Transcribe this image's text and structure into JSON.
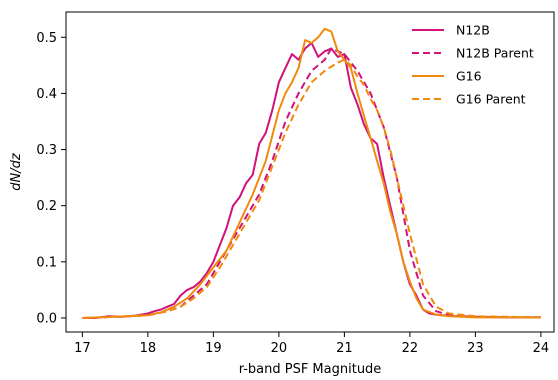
{
  "chart_data": {
    "type": "line",
    "title": "",
    "xlabel": "r-band PSF Magnitude",
    "ylabel": "dN/dz",
    "xlim": [
      16.75,
      24.2
    ],
    "ylim": [
      -0.025,
      0.545
    ],
    "xticks": [
      "17",
      "18",
      "19",
      "20",
      "21",
      "22",
      "23",
      "24"
    ],
    "yticks": [
      "0.0",
      "0.1",
      "0.2",
      "0.3",
      "0.4",
      "0.5"
    ],
    "grid": false,
    "legend_position": "top-right",
    "series": [
      {
        "name": "N12B",
        "color": "#d1127a",
        "dash": "solid",
        "x": [
          17.0,
          17.2,
          17.4,
          17.6,
          17.8,
          18.0,
          18.1,
          18.2,
          18.3,
          18.4,
          18.5,
          18.6,
          18.7,
          18.8,
          18.9,
          19.0,
          19.1,
          19.2,
          19.3,
          19.4,
          19.5,
          19.6,
          19.7,
          19.8,
          19.9,
          20.0,
          20.1,
          20.2,
          20.3,
          20.4,
          20.5,
          20.6,
          20.7,
          20.8,
          20.9,
          21.0,
          21.1,
          21.2,
          21.3,
          21.4,
          21.5,
          21.6,
          21.7,
          21.8,
          21.9,
          22.0,
          22.1,
          22.2,
          22.3,
          22.4,
          22.5,
          22.6,
          22.7,
          22.8,
          23.0,
          23.5,
          24.0
        ],
        "y": [
          0.0,
          0.0,
          0.003,
          0.002,
          0.004,
          0.008,
          0.012,
          0.015,
          0.02,
          0.025,
          0.04,
          0.05,
          0.055,
          0.065,
          0.08,
          0.1,
          0.13,
          0.16,
          0.2,
          0.215,
          0.24,
          0.255,
          0.31,
          0.33,
          0.37,
          0.42,
          0.445,
          0.47,
          0.46,
          0.48,
          0.49,
          0.465,
          0.475,
          0.48,
          0.465,
          0.47,
          0.41,
          0.38,
          0.345,
          0.32,
          0.31,
          0.25,
          0.2,
          0.15,
          0.1,
          0.06,
          0.04,
          0.015,
          0.008,
          0.006,
          0.005,
          0.004,
          0.003,
          0.003,
          0.002,
          0.001,
          0.001
        ]
      },
      {
        "name": "N12B Parent",
        "color": "#d1127a",
        "dash": "dashed",
        "x": [
          17.0,
          17.5,
          18.0,
          18.3,
          18.5,
          18.7,
          18.9,
          19.1,
          19.3,
          19.5,
          19.7,
          19.9,
          20.1,
          20.3,
          20.5,
          20.7,
          20.8,
          20.9,
          21.0,
          21.2,
          21.4,
          21.6,
          21.8,
          22.0,
          22.2,
          22.4,
          22.6,
          22.8,
          23.0,
          23.5,
          24.0
        ],
        "y": [
          0.0,
          0.002,
          0.005,
          0.012,
          0.02,
          0.04,
          0.06,
          0.1,
          0.14,
          0.18,
          0.22,
          0.28,
          0.35,
          0.4,
          0.44,
          0.46,
          0.48,
          0.475,
          0.47,
          0.44,
          0.4,
          0.34,
          0.25,
          0.12,
          0.04,
          0.012,
          0.005,
          0.003,
          0.002,
          0.001,
          0.001
        ]
      },
      {
        "name": "G16",
        "color": "#f08a0c",
        "dash": "solid",
        "x": [
          17.0,
          17.5,
          18.0,
          18.2,
          18.4,
          18.6,
          18.8,
          19.0,
          19.2,
          19.4,
          19.6,
          19.8,
          20.0,
          20.1,
          20.2,
          20.3,
          20.4,
          20.5,
          20.6,
          20.7,
          20.8,
          20.9,
          21.0,
          21.1,
          21.2,
          21.3,
          21.4,
          21.5,
          21.6,
          21.7,
          21.8,
          21.9,
          22.0,
          22.1,
          22.2,
          22.4,
          22.6,
          23.0,
          24.0
        ],
        "y": [
          0.0,
          0.002,
          0.005,
          0.01,
          0.02,
          0.035,
          0.06,
          0.09,
          0.12,
          0.17,
          0.22,
          0.28,
          0.37,
          0.4,
          0.42,
          0.445,
          0.495,
          0.49,
          0.5,
          0.515,
          0.51,
          0.475,
          0.46,
          0.445,
          0.4,
          0.36,
          0.32,
          0.28,
          0.24,
          0.19,
          0.15,
          0.1,
          0.065,
          0.035,
          0.015,
          0.006,
          0.003,
          0.001,
          0.001
        ]
      },
      {
        "name": "G16 Parent",
        "color": "#f08a0c",
        "dash": "dashed",
        "x": [
          17.0,
          17.5,
          18.0,
          18.3,
          18.5,
          18.7,
          18.9,
          19.1,
          19.3,
          19.5,
          19.7,
          19.9,
          20.1,
          20.3,
          20.5,
          20.7,
          20.9,
          21.0,
          21.1,
          21.2,
          21.3,
          21.4,
          21.5,
          21.6,
          21.7,
          21.8,
          22.0,
          22.2,
          22.4,
          22.6,
          23.0,
          23.5,
          24.0
        ],
        "y": [
          0.0,
          0.002,
          0.005,
          0.012,
          0.02,
          0.035,
          0.055,
          0.09,
          0.13,
          0.17,
          0.21,
          0.27,
          0.33,
          0.38,
          0.42,
          0.44,
          0.455,
          0.46,
          0.45,
          0.43,
          0.415,
          0.39,
          0.37,
          0.34,
          0.3,
          0.25,
          0.15,
          0.06,
          0.02,
          0.008,
          0.003,
          0.002,
          0.001
        ]
      }
    ]
  }
}
